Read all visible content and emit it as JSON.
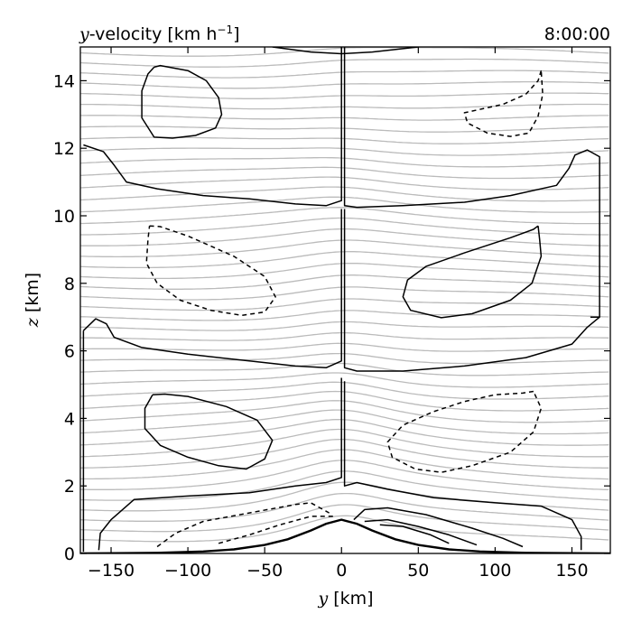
{
  "chart_data": {
    "type": "contour",
    "title_left_var": "y",
    "title_left_rest": "-velocity [km h",
    "title_left_exp": "−1",
    "title_left_close": "]",
    "title_right": "8:00:00",
    "xlabel_var": "y",
    "xlabel_unit": " [km]",
    "ylabel_var": "z",
    "ylabel_unit": " [km]",
    "xlim": [
      -170,
      175
    ],
    "ylim": [
      0,
      15
    ],
    "xticks": [
      -150,
      -100,
      -50,
      0,
      50,
      100,
      150
    ],
    "xtick_labels": [
      "−150",
      "−100",
      "−50",
      "0",
      "50",
      "100",
      "150"
    ],
    "yticks": [
      0,
      2,
      4,
      6,
      8,
      10,
      12,
      14
    ],
    "ytick_labels": [
      "0",
      "2",
      "4",
      "6",
      "8",
      "10",
      "12",
      "14"
    ],
    "grid": false,
    "colors": {
      "positive_contour": "#000000",
      "negative_contour": "#000000",
      "isentropes": "#bbbbbb"
    },
    "terrain": {
      "peak_height_km": 1.0,
      "half_width_km": 45,
      "x": [
        -170,
        -120,
        -90,
        -70,
        -50,
        -35,
        -20,
        -10,
        0,
        10,
        20,
        35,
        50,
        70,
        90,
        120,
        175
      ],
      "z": [
        0.0,
        0.02,
        0.06,
        0.12,
        0.25,
        0.42,
        0.68,
        0.88,
        1.0,
        0.88,
        0.68,
        0.42,
        0.25,
        0.12,
        0.06,
        0.02,
        0.0
      ]
    },
    "isentropes": {
      "count": 45,
      "z_start": 0.3,
      "z_spacing": 0.33,
      "wave_amplitude_km": 0.12,
      "wavelength_km": 340
    },
    "contours": [
      {
        "name": "zero-upper",
        "style": "solid",
        "points": [
          [
            -168,
            12.1
          ],
          [
            -155,
            11.9
          ],
          [
            -148,
            11.5
          ],
          [
            -140,
            11.0
          ],
          [
            -120,
            10.8
          ],
          [
            -90,
            10.6
          ],
          [
            -60,
            10.5
          ],
          [
            -30,
            10.35
          ],
          [
            -10,
            10.3
          ],
          [
            0,
            10.45
          ],
          [
            0,
            15
          ]
        ]
      },
      {
        "name": "zero-upper-right",
        "style": "solid",
        "points": [
          [
            2,
            15
          ],
          [
            2,
            10.3
          ],
          [
            10,
            10.25
          ],
          [
            40,
            10.3
          ],
          [
            80,
            10.4
          ],
          [
            110,
            10.6
          ],
          [
            140,
            10.9
          ],
          [
            148,
            11.4
          ],
          [
            152,
            11.8
          ],
          [
            160,
            11.95
          ],
          [
            168,
            11.75
          ],
          [
            168,
            7.0
          ],
          [
            162,
            7.0
          ]
        ]
      },
      {
        "name": "zero-top-cap",
        "style": "solid",
        "points": [
          [
            -45,
            15
          ],
          [
            -20,
            14.85
          ],
          [
            0,
            14.8
          ],
          [
            20,
            14.85
          ],
          [
            50,
            15
          ]
        ]
      },
      {
        "name": "pos-upper-left",
        "style": "solid",
        "points": [
          [
            -122,
            14.4
          ],
          [
            -118,
            14.45
          ],
          [
            -100,
            14.3
          ],
          [
            -88,
            14.0
          ],
          [
            -80,
            13.5
          ],
          [
            -78,
            13.0
          ],
          [
            -82,
            12.6
          ],
          [
            -95,
            12.38
          ],
          [
            -110,
            12.3
          ],
          [
            -122,
            12.33
          ],
          [
            -130,
            12.9
          ],
          [
            -130,
            13.7
          ],
          [
            -126,
            14.2
          ],
          [
            -122,
            14.4
          ]
        ]
      },
      {
        "name": "neg-upper-right",
        "style": "dashed",
        "points": [
          [
            130,
            14.3
          ],
          [
            128,
            14.0
          ],
          [
            120,
            13.6
          ],
          [
            105,
            13.3
          ],
          [
            80,
            13.05
          ],
          [
            82,
            12.75
          ],
          [
            95,
            12.45
          ],
          [
            110,
            12.35
          ],
          [
            122,
            12.45
          ],
          [
            128,
            12.95
          ],
          [
            131,
            13.6
          ],
          [
            130,
            14.3
          ]
        ]
      },
      {
        "name": "neg-mid-left",
        "style": "dashed",
        "points": [
          [
            -125,
            9.7
          ],
          [
            -118,
            9.68
          ],
          [
            -100,
            9.4
          ],
          [
            -70,
            8.8
          ],
          [
            -50,
            8.2
          ],
          [
            -43,
            7.6
          ],
          [
            -50,
            7.15
          ],
          [
            -65,
            7.05
          ],
          [
            -85,
            7.2
          ],
          [
            -105,
            7.5
          ],
          [
            -120,
            8.0
          ],
          [
            -127,
            8.6
          ],
          [
            -126,
            9.3
          ],
          [
            -125,
            9.7
          ]
        ]
      },
      {
        "name": "pos-mid-right",
        "style": "solid",
        "points": [
          [
            128,
            9.7
          ],
          [
            125,
            9.6
          ],
          [
            110,
            9.35
          ],
          [
            80,
            8.9
          ],
          [
            55,
            8.5
          ],
          [
            43,
            8.1
          ],
          [
            40,
            7.6
          ],
          [
            45,
            7.2
          ],
          [
            65,
            6.98
          ],
          [
            85,
            7.1
          ],
          [
            110,
            7.5
          ],
          [
            124,
            8.0
          ],
          [
            130,
            8.8
          ],
          [
            129,
            9.3
          ],
          [
            128,
            9.7
          ]
        ]
      },
      {
        "name": "zero-mid",
        "style": "solid",
        "points": [
          [
            -168,
            6.6
          ],
          [
            -160,
            6.95
          ],
          [
            -153,
            6.8
          ],
          [
            -148,
            6.4
          ],
          [
            -130,
            6.1
          ],
          [
            -100,
            5.9
          ],
          [
            -60,
            5.7
          ],
          [
            -30,
            5.55
          ],
          [
            -10,
            5.5
          ],
          [
            0,
            5.7
          ],
          [
            0,
            10.2
          ]
        ]
      },
      {
        "name": "zero-mid-right-edge",
        "style": "solid",
        "points": [
          [
            2,
            10.2
          ],
          [
            2,
            5.5
          ],
          [
            10,
            5.4
          ],
          [
            40,
            5.4
          ],
          [
            80,
            5.55
          ],
          [
            120,
            5.8
          ],
          [
            150,
            6.2
          ],
          [
            160,
            6.7
          ],
          [
            168,
            7.0
          ]
        ]
      },
      {
        "name": "pos-low-left",
        "style": "solid",
        "points": [
          [
            -123,
            4.7
          ],
          [
            -115,
            4.72
          ],
          [
            -100,
            4.65
          ],
          [
            -75,
            4.35
          ],
          [
            -55,
            3.95
          ],
          [
            -45,
            3.35
          ],
          [
            -50,
            2.8
          ],
          [
            -62,
            2.5
          ],
          [
            -80,
            2.6
          ],
          [
            -100,
            2.85
          ],
          [
            -118,
            3.2
          ],
          [
            -128,
            3.7
          ],
          [
            -128,
            4.3
          ],
          [
            -123,
            4.7
          ]
        ]
      },
      {
        "name": "neg-low-right",
        "style": "dashed",
        "points": [
          [
            125,
            4.8
          ],
          [
            118,
            4.75
          ],
          [
            100,
            4.7
          ],
          [
            80,
            4.5
          ],
          [
            60,
            4.2
          ],
          [
            40,
            3.8
          ],
          [
            30,
            3.3
          ],
          [
            33,
            2.85
          ],
          [
            48,
            2.5
          ],
          [
            65,
            2.4
          ],
          [
            85,
            2.6
          ],
          [
            110,
            3.0
          ],
          [
            125,
            3.6
          ],
          [
            130,
            4.3
          ],
          [
            125,
            4.8
          ]
        ]
      },
      {
        "name": "zero-low",
        "style": "solid",
        "points": [
          [
            -168,
            0.05
          ],
          [
            -168,
            6.6
          ]
        ]
      },
      {
        "name": "zero-low-center",
        "style": "solid",
        "points": [
          [
            0,
            5.2
          ],
          [
            0,
            2.25
          ],
          [
            -10,
            2.1
          ],
          [
            -30,
            2.0
          ],
          [
            -60,
            1.8
          ],
          [
            -100,
            1.7
          ],
          [
            -135,
            1.6
          ],
          [
            -150,
            1.0
          ],
          [
            -157,
            0.6
          ],
          [
            -158,
            0.1
          ]
        ]
      },
      {
        "name": "zero-low-right",
        "style": "solid",
        "points": [
          [
            2,
            5.1
          ],
          [
            2,
            2.0
          ],
          [
            10,
            2.1
          ],
          [
            30,
            1.9
          ],
          [
            60,
            1.65
          ],
          [
            100,
            1.5
          ],
          [
            130,
            1.4
          ],
          [
            150,
            1.0
          ],
          [
            156,
            0.5
          ],
          [
            156,
            0.1
          ]
        ]
      },
      {
        "name": "neg-near-terrain",
        "style": "dashed",
        "points": [
          [
            -120,
            0.2
          ],
          [
            -108,
            0.6
          ],
          [
            -90,
            0.95
          ],
          [
            -60,
            1.2
          ],
          [
            -30,
            1.45
          ],
          [
            -20,
            1.5
          ],
          [
            -8,
            1.2
          ]
        ]
      },
      {
        "name": "neg-near-terrain-2",
        "style": "dashed",
        "points": [
          [
            -80,
            0.3
          ],
          [
            -60,
            0.55
          ],
          [
            -40,
            0.85
          ],
          [
            -20,
            1.1
          ],
          [
            -5,
            1.1
          ]
        ]
      },
      {
        "name": "pos-lee-1",
        "style": "solid",
        "points": [
          [
            8,
            1.0
          ],
          [
            15,
            1.3
          ],
          [
            30,
            1.35
          ],
          [
            55,
            1.15
          ],
          [
            85,
            0.75
          ],
          [
            105,
            0.45
          ],
          [
            118,
            0.2
          ]
        ]
      },
      {
        "name": "pos-lee-2",
        "style": "solid",
        "points": [
          [
            15,
            0.95
          ],
          [
            30,
            1.0
          ],
          [
            50,
            0.8
          ],
          [
            70,
            0.55
          ],
          [
            88,
            0.25
          ]
        ]
      },
      {
        "name": "pos-lee-3",
        "style": "solid",
        "points": [
          [
            25,
            0.85
          ],
          [
            40,
            0.8
          ],
          [
            58,
            0.55
          ],
          [
            70,
            0.3
          ]
        ]
      }
    ]
  }
}
